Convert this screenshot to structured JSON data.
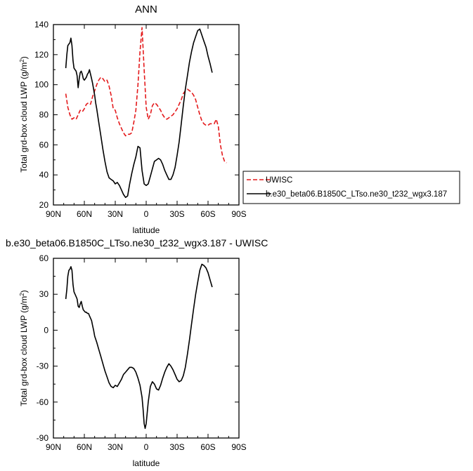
{
  "chart_data": [
    {
      "type": "line",
      "title": "ANN",
      "xlabel": "latitude",
      "ylabel": "Total grd-box cloud LWP (g/m",
      "ylabel_sup": "2",
      "ylabel_close": ")",
      "xlim": [
        90,
        -90
      ],
      "ylim": [
        20,
        140
      ],
      "xticks": [
        90,
        60,
        30,
        0,
        -30,
        -60,
        -90
      ],
      "xtick_labels": [
        "90N",
        "60N",
        "30N",
        "0",
        "30S",
        "60S",
        "90S"
      ],
      "yticks": [
        20,
        40,
        60,
        80,
        100,
        120,
        140
      ],
      "ytick_labels": [
        "20",
        "40",
        "60",
        "80",
        "100",
        "120",
        "140"
      ],
      "grid": false,
      "legend": "right",
      "series": [
        {
          "name": "UWISC",
          "color": "#e41a1c",
          "dash": "dashed",
          "x": [
            78,
            76,
            74,
            72,
            70,
            68,
            66,
            64,
            62,
            60,
            58,
            56,
            54,
            52,
            50,
            48,
            46,
            44,
            42,
            40,
            38,
            36,
            34,
            32,
            30,
            28,
            26,
            24,
            22,
            20,
            18,
            16,
            14,
            12,
            10,
            8,
            6,
            4,
            2,
            0,
            -2,
            -4,
            -6,
            -8,
            -10,
            -12,
            -14,
            -16,
            -18,
            -20,
            -22,
            -24,
            -26,
            -28,
            -30,
            -32,
            -34,
            -36,
            -38,
            -40,
            -42,
            -44,
            -46,
            -48,
            -50,
            -52,
            -54,
            -56,
            -58,
            -60,
            -62,
            -64,
            -66,
            -68,
            -70,
            -72,
            -74,
            -76,
            -78
          ],
          "values": [
            94,
            85,
            80,
            77,
            78,
            77,
            80,
            83,
            82,
            84,
            87,
            88,
            87,
            92,
            96,
            100,
            103,
            105,
            104,
            102,
            103,
            99,
            93,
            84,
            83,
            78,
            74,
            71,
            68,
            66,
            67,
            67,
            68,
            75,
            83,
            100,
            122,
            138,
            110,
            85,
            77,
            80,
            86,
            88,
            87,
            85,
            83,
            80,
            78,
            77,
            78,
            79,
            80,
            82,
            84,
            87,
            90,
            94,
            96,
            97,
            96,
            95,
            93,
            90,
            85,
            80,
            76,
            74,
            73,
            73,
            74,
            74,
            74,
            77,
            72,
            60,
            53,
            49,
            48
          ]
        },
        {
          "name": "b.e30_beta06.B1850C_LTso.ne30_t232_wgx3.187",
          "color": "#000000",
          "dash": "solid",
          "x": [
            78,
            77,
            76,
            75,
            74,
            73,
            72,
            71,
            70,
            69,
            68,
            67,
            66,
            65,
            64,
            63,
            62,
            61,
            60,
            59,
            58,
            57,
            56,
            55,
            54,
            53,
            52,
            51,
            50,
            49,
            48,
            46,
            44,
            42,
            40,
            38,
            36,
            34,
            32,
            30,
            28,
            26,
            24,
            22,
            20,
            18,
            16,
            14,
            12,
            10,
            8,
            6,
            4,
            2,
            0,
            -2,
            -4,
            -6,
            -8,
            -10,
            -12,
            -14,
            -16,
            -18,
            -20,
            -22,
            -24,
            -26,
            -28,
            -30,
            -32,
            -34,
            -36,
            -38,
            -40,
            -42,
            -44,
            -46,
            -48,
            -50,
            -52,
            -54,
            -56,
            -58,
            -60,
            -62,
            -64
          ],
          "values": [
            111,
            120,
            126,
            127,
            128,
            131,
            126,
            116,
            111,
            110,
            109,
            106,
            98,
            104,
            108,
            109,
            107,
            104,
            103,
            104,
            105,
            107,
            108,
            110,
            107,
            104,
            101,
            97,
            93,
            88,
            84,
            75,
            66,
            57,
            49,
            42,
            38,
            37,
            36,
            34,
            35,
            33,
            30,
            27,
            25,
            26,
            34,
            41,
            47,
            52,
            59,
            58,
            43,
            34,
            33,
            34,
            39,
            44,
            49,
            50,
            51,
            50,
            47,
            43,
            40,
            37,
            37,
            40,
            45,
            53,
            62,
            74,
            86,
            97,
            106,
            115,
            122,
            128,
            132,
            136,
            137,
            133,
            129,
            125,
            119,
            114,
            108
          ]
        }
      ]
    },
    {
      "type": "line",
      "title": "b.e30_beta06.B1850C_LTso.ne30_t232_wgx3.187 - UWISC",
      "xlabel": "latitude",
      "ylabel": "Total grd-box cloud LWP (g/m",
      "ylabel_sup": "2",
      "ylabel_close": ")",
      "xlim": [
        90,
        -90
      ],
      "ylim": [
        -90,
        60
      ],
      "xticks": [
        90,
        60,
        30,
        0,
        -30,
        -60,
        -90
      ],
      "xtick_labels": [
        "90N",
        "60N",
        "30N",
        "0",
        "30S",
        "60S",
        "90S"
      ],
      "yticks": [
        -90,
        -60,
        -30,
        0,
        30,
        60
      ],
      "ytick_labels": [
        "-90",
        "-60",
        "-30",
        "0",
        "30",
        "60"
      ],
      "grid": false,
      "series": [
        {
          "color": "#000000",
          "dash": "solid",
          "x": [
            78,
            77,
            76,
            75,
            74,
            73,
            72,
            71,
            70,
            69,
            68,
            67,
            66,
            65,
            64,
            63,
            62,
            61,
            60,
            59,
            58,
            57,
            56,
            55,
            54,
            53,
            52,
            51,
            50,
            48,
            46,
            44,
            42,
            40,
            38,
            36,
            34,
            32,
            30,
            28,
            26,
            24,
            22,
            20,
            18,
            16,
            14,
            12,
            10,
            8,
            6,
            4,
            3,
            2,
            1,
            0,
            -2,
            -4,
            -6,
            -8,
            -10,
            -12,
            -14,
            -16,
            -18,
            -20,
            -22,
            -24,
            -26,
            -28,
            -30,
            -32,
            -34,
            -36,
            -38,
            -40,
            -42,
            -44,
            -46,
            -48,
            -50,
            -52,
            -54,
            -56,
            -58,
            -60,
            -62,
            -64
          ],
          "values": [
            26,
            34,
            45,
            50,
            51,
            53,
            50,
            38,
            32,
            30,
            28,
            26,
            20,
            19,
            22,
            24,
            20,
            17,
            16,
            15,
            15,
            14,
            14,
            12,
            10,
            8,
            4,
            0,
            -5,
            -10,
            -16,
            -22,
            -28,
            -34,
            -39,
            -44,
            -47,
            -48,
            -46,
            -47,
            -44,
            -41,
            -37,
            -35,
            -33,
            -31,
            -31,
            -32,
            -35,
            -40,
            -46,
            -56,
            -66,
            -78,
            -82,
            -78,
            -60,
            -47,
            -43,
            -45,
            -49,
            -50,
            -46,
            -40,
            -35,
            -31,
            -28,
            -30,
            -33,
            -37,
            -41,
            -43,
            -42,
            -38,
            -31,
            -20,
            -8,
            5,
            18,
            30,
            40,
            50,
            55,
            54,
            52,
            48,
            42,
            36
          ]
        }
      ]
    }
  ]
}
